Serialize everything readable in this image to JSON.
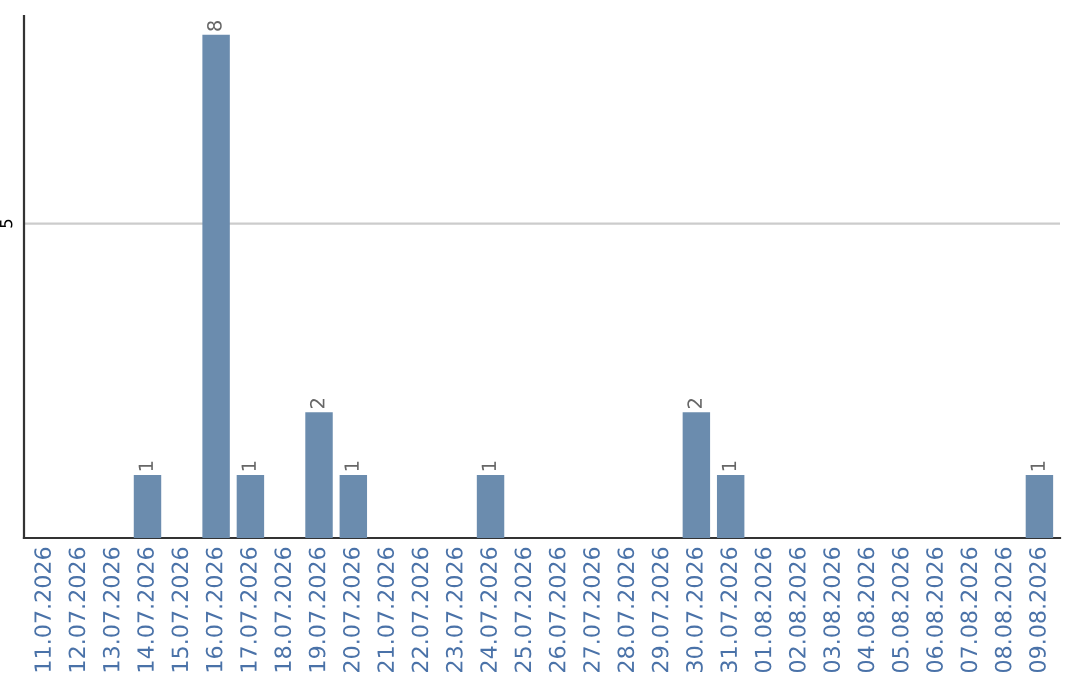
{
  "chart_data": {
    "type": "bar",
    "categories": [
      "11.07.2026",
      "12.07.2026",
      "13.07.2026",
      "14.07.2026",
      "15.07.2026",
      "16.07.2026",
      "17.07.2026",
      "18.07.2026",
      "19.07.2026",
      "20.07.2026",
      "21.07.2026",
      "22.07.2026",
      "23.07.2026",
      "24.07.2026",
      "25.07.2026",
      "26.07.2026",
      "27.07.2026",
      "28.07.2026",
      "29.07.2026",
      "30.07.2026",
      "31.07.2026",
      "01.08.2026",
      "02.08.2026",
      "03.08.2026",
      "04.08.2026",
      "05.08.2026",
      "06.08.2026",
      "07.08.2026",
      "08.08.2026",
      "09.08.2026"
    ],
    "values": [
      0,
      0,
      0,
      1,
      0,
      8,
      1,
      0,
      2,
      1,
      0,
      0,
      0,
      1,
      0,
      0,
      0,
      0,
      0,
      2,
      1,
      0,
      0,
      0,
      0,
      0,
      0,
      0,
      0,
      1
    ],
    "value_labels": [
      null,
      null,
      null,
      "1",
      null,
      "8",
      "1",
      null,
      "2",
      "1",
      null,
      null,
      null,
      "1",
      null,
      null,
      null,
      null,
      null,
      "2",
      "1",
      null,
      null,
      null,
      null,
      null,
      null,
      null,
      null,
      "1"
    ],
    "color": "#6b8cae",
    "ylim": [
      0,
      8.3
    ],
    "yticks": [
      5
    ],
    "grid": "y"
  }
}
